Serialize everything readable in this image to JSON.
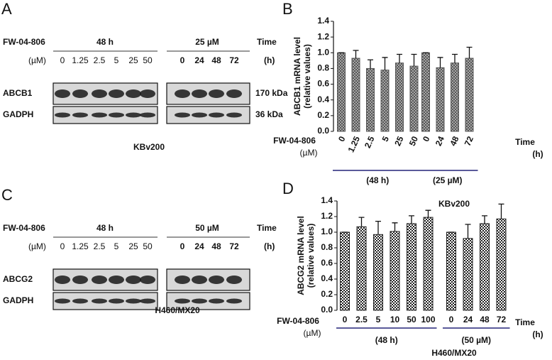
{
  "blots": [
    {
      "letter": "A",
      "compound": "FW-04-806",
      "group_labels": [
        "48 h",
        "25 µM"
      ],
      "time_label": "Time",
      "conc_unit": "(µM)",
      "concentrations": [
        "0",
        "1.25",
        "2.5",
        "5",
        "25",
        "50"
      ],
      "times": [
        "0",
        "24",
        "48",
        "72"
      ],
      "time_unit": "(h)",
      "rows": [
        {
          "name": "ABCB1",
          "size": "170 kDa"
        },
        {
          "name": "GADPH",
          "size": "36 kDa"
        }
      ],
      "cell_line": "KBv200"
    },
    {
      "letter": "C",
      "compound": "FW-04-806",
      "group_labels": [
        "48 h",
        "50 µM"
      ],
      "time_label": "Time",
      "conc_unit": "(µM)",
      "concentrations": [
        "0",
        "1.25",
        "2.5",
        "5",
        "25",
        "50"
      ],
      "times": [
        "0",
        "24",
        "48",
        "72"
      ],
      "time_unit": "(h)",
      "rows": [
        {
          "name": "ABCG2"
        },
        {
          "name": "GADPH"
        }
      ],
      "cell_line": "H460/MX20"
    }
  ],
  "chart_data": [
    {
      "type": "bar",
      "letter": "B",
      "y_label": [
        "ABCB1 mRNA level",
        "(relative values)"
      ],
      "ylim": [
        0,
        1.4
      ],
      "yticks": [
        {
          "value": 0,
          "label": "0.0"
        },
        0.2,
        0.4,
        0.6,
        0.8,
        {
          "value": 1,
          "label": "1.0"
        },
        1.2,
        1.4
      ],
      "color": "#555555",
      "pattern": "crosshatch",
      "rotated_labels": true,
      "compound": "FW-04-806",
      "conc_unit": "(µM)",
      "time_label": "Time",
      "time_unit": "(h)",
      "cell_line": "KBv200",
      "groups": [
        {
          "label": "(48 h)",
          "categories": [
            "0",
            "1.25",
            "2.5",
            "5",
            "25",
            "50"
          ],
          "values": [
            1.0,
            0.93,
            0.8,
            0.78,
            0.87,
            0.83
          ],
          "errors": [
            0,
            0.1,
            0.11,
            0.16,
            0.11,
            0.15
          ]
        },
        {
          "label": "(25 µM)",
          "categories": [
            "0",
            "24",
            "48",
            "72"
          ],
          "values": [
            1.0,
            0.81,
            0.87,
            0.93
          ],
          "errors": [
            0,
            0.13,
            0.11,
            0.14
          ]
        }
      ]
    },
    {
      "type": "bar",
      "letter": "D",
      "y_label": [
        "ABCG2 mRNA level",
        "(relative values)"
      ],
      "ylim": [
        0,
        1.4
      ],
      "yticks": [
        {
          "value": 0,
          "label": "0.0"
        },
        0.2,
        0.4,
        0.6,
        0.8,
        {
          "value": 1,
          "label": "1.0"
        },
        1.2,
        1.4
      ],
      "color": "#222222",
      "pattern": "checker",
      "rotated_labels": false,
      "compound": "FW-04-806",
      "conc_unit": "(µM)",
      "time_label": "Time",
      "time_unit": "(h)",
      "cell_line": "H460/MX20",
      "groups": [
        {
          "label": "(48 h)",
          "categories": [
            "0",
            "2.5",
            "5",
            "10",
            "50",
            "100"
          ],
          "values": [
            1.0,
            1.07,
            0.97,
            1.01,
            1.11,
            1.19
          ],
          "errors": [
            0,
            0.12,
            0.17,
            0.11,
            0.1,
            0.09
          ]
        },
        {
          "label": "(50 µM)",
          "categories": [
            "0",
            "24",
            "48",
            "72"
          ],
          "values": [
            1.0,
            0.92,
            1.11,
            1.17
          ],
          "errors": [
            0,
            0.18,
            0.1,
            0.19
          ]
        }
      ]
    }
  ]
}
